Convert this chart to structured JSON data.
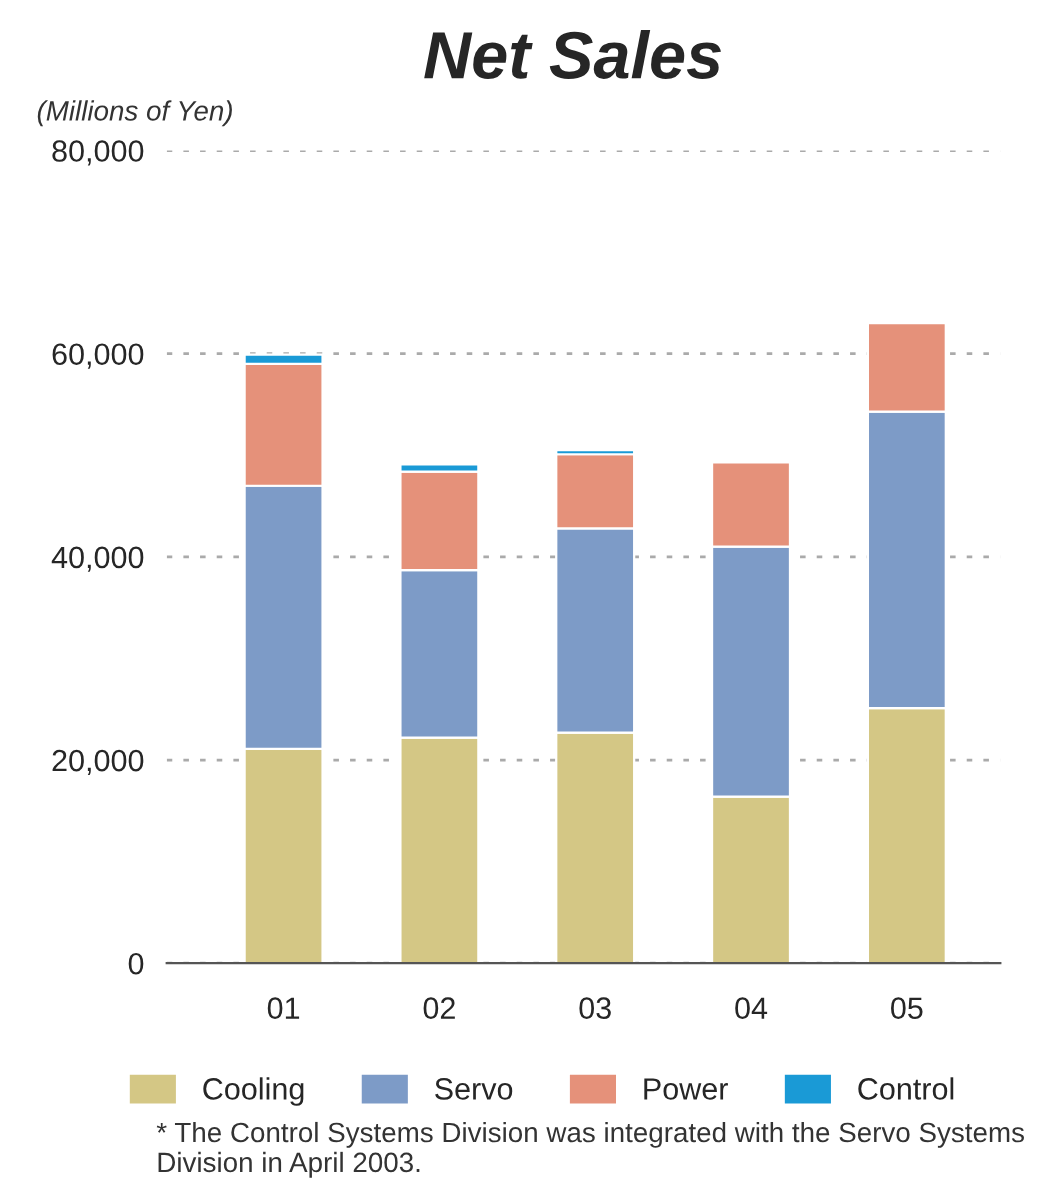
{
  "chart_data": {
    "type": "bar",
    "title": "Net Sales",
    "ylabel": "(Millions of Yen)",
    "stacked": true,
    "categories": [
      "01",
      "02",
      "03",
      "04",
      "05"
    ],
    "series": [
      {
        "name": "Cooling",
        "color": "#d4c785",
        "values": [
          21100,
          22200,
          22700,
          16400,
          25100
        ]
      },
      {
        "name": "Servo",
        "color": "#7d9bc7",
        "values": [
          25900,
          16500,
          20100,
          24600,
          29200
        ]
      },
      {
        "name": "Power",
        "color": "#e5917a",
        "values": [
          12000,
          9700,
          7300,
          8300,
          8700
        ]
      },
      {
        "name": "Control",
        "color": "#1a9ad6",
        "values": [
          900,
          700,
          400,
          null,
          null
        ]
      }
    ],
    "ylim": [
      0,
      80000
    ],
    "yticks": [
      {
        "value": 0,
        "label": "0"
      },
      {
        "value": 20000,
        "label": "20,000"
      },
      {
        "value": 40000,
        "label": "40,000"
      },
      {
        "value": 60000,
        "label": "60,000"
      },
      {
        "value": 80000,
        "label": "80,000"
      }
    ],
    "grid": "y",
    "legend": "bottom",
    "annotations": [
      "* The Control Systems Division was integrated with the Servo Systems Division in April 2003."
    ]
  }
}
